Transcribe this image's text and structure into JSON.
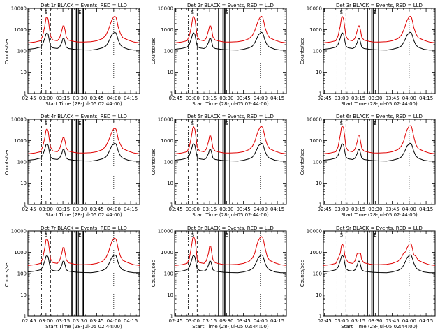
{
  "chart_data": {
    "type": "line",
    "ylabel": "Counts/sec",
    "yscale": "log",
    "ylim": [
      1,
      10000
    ],
    "ytick_labels": [
      "1",
      "10",
      "100",
      "1000",
      "10000"
    ],
    "ytick_values": [
      1,
      10,
      100,
      1000,
      10000
    ],
    "x_tick_labels": [
      "02:45",
      "03:00",
      "03:15",
      "03:30",
      "03:45",
      "04:00",
      "04:15"
    ],
    "x_tick_minutes": [
      45,
      60,
      75,
      90,
      105,
      120,
      135
    ],
    "xlim_minutes": [
      44,
      143
    ],
    "xlim": [
      "02:44:00",
      "04:23:00"
    ],
    "series_colors": {
      "events": "#000000",
      "lld": "#e00000"
    },
    "marker_labels": {
      "S": "S",
      "E": "E"
    },
    "panels": [
      {
        "title": "Det 1r BLACK = Events, RED = LLD",
        "xlabel": "Start Time (28-Jul-05 02:44:00)"
      },
      {
        "title": "Det 2r BLACK = Events, RED = LLD",
        "xlabel": "Start Time (28-Jul-05 02:44:00)"
      },
      {
        "title": "Det 3r BLACK = Events, RED = LLD",
        "xlabel": "Start Time (28-Jul-05 02:44:00)"
      },
      {
        "title": "Det 4r BLACK = Events, RED = LLD",
        "xlabel": "Start Time (28-Jul-05 02:44:00)"
      },
      {
        "title": "Det 5r BLACK = Events, RED = LLD",
        "xlabel": "Start Time (28-Jul-05 02:44:00)"
      },
      {
        "title": "Det 6r BLACK = Events, RED = LLD",
        "xlabel": "Start Time (28-Jul-05 02:44:00)"
      },
      {
        "title": "Det 7r BLACK = Events, RED = LLD",
        "xlabel": "Start Time (28-Jul-05 02:44:00)"
      },
      {
        "title": "Det 8r BLACK = Events, RED = LLD",
        "xlabel": "Start Time (28-Jul-05 02:44:00)"
      },
      {
        "title": "Det 9r BLACK = Events, RED = LLD",
        "xlabel": "Start Time (28-Jul-05 02:44:00)"
      }
    ],
    "series_template": {
      "x_minutes": [
        44,
        50,
        55,
        57,
        59,
        60,
        61,
        62,
        63,
        64,
        66,
        70,
        72,
        74,
        75,
        76,
        77,
        78,
        80,
        85,
        88,
        93,
        100,
        105,
        110,
        113,
        115,
        117,
        118,
        120,
        121,
        122,
        123,
        124,
        126,
        128,
        133,
        138,
        143
      ],
      "lld": [
        240,
        260,
        300,
        500,
        1500,
        3500,
        4000,
        3000,
        1200,
        500,
        330,
        300,
        400,
        900,
        1500,
        1500,
        900,
        450,
        320,
        280,
        265,
        260,
        270,
        300,
        380,
        550,
        900,
        1800,
        2600,
        4000,
        4200,
        3800,
        2400,
        1300,
        650,
        420,
        320,
        260,
        240
      ],
      "events": [
        120,
        130,
        150,
        200,
        400,
        650,
        700,
        600,
        300,
        170,
        140,
        130,
        150,
        250,
        380,
        380,
        250,
        150,
        130,
        120,
        115,
        112,
        110,
        120,
        140,
        170,
        240,
        400,
        550,
        700,
        750,
        700,
        500,
        320,
        190,
        150,
        120,
        110,
        110
      ]
    },
    "vertical_markers": [
      {
        "x": 56,
        "style": "dash-dot"
      },
      {
        "x": 64,
        "style": "dashed"
      },
      {
        "x": 83,
        "style": "solid"
      },
      {
        "x": 87,
        "style": "solid"
      },
      {
        "x": 88.5,
        "style": "solid"
      },
      {
        "x": 93,
        "style": "solid"
      },
      {
        "x": 120,
        "style": "dotted"
      }
    ]
  }
}
